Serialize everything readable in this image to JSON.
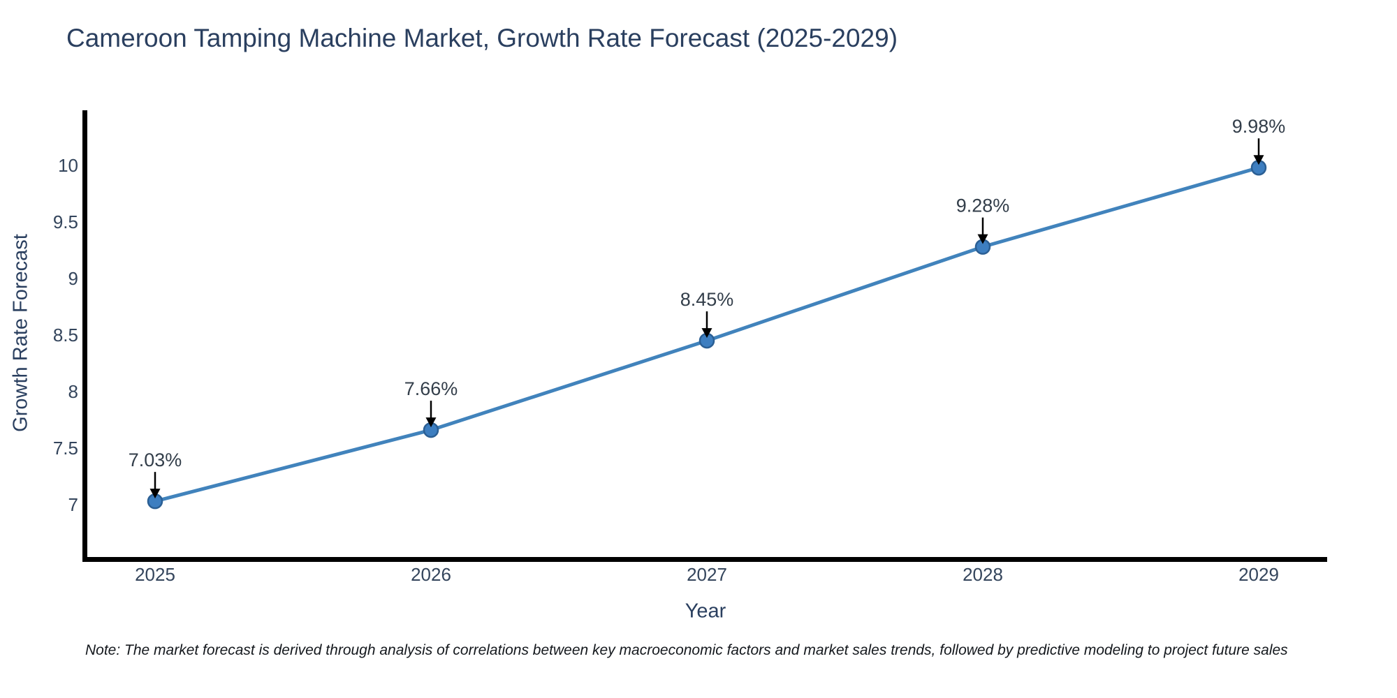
{
  "page": {
    "title": "Cameroon Tamping Machine Market, Growth Rate Forecast (2025-2029)",
    "note": "Note: The market forecast is derived through analysis of correlations between key macroeconomic factors and market sales trends, followed by predictive modeling to project future sales"
  },
  "chart_data": {
    "type": "line",
    "title": "Cameroon Tamping Machine Market, Growth Rate Forecast (2025-2029)",
    "xlabel": "Year",
    "ylabel": "Growth Rate Forecast",
    "x": [
      2025,
      2026,
      2027,
      2028,
      2029
    ],
    "series": [
      {
        "name": "Growth Rate Forecast",
        "values": [
          7.03,
          7.66,
          8.45,
          9.28,
          9.98
        ]
      }
    ],
    "point_labels": [
      "7.03%",
      "7.66%",
      "8.45%",
      "9.28%",
      "9.98%"
    ],
    "x_ticks": [
      "2025",
      "2026",
      "2027",
      "2028",
      "2029"
    ],
    "y_ticks": [
      7,
      7.5,
      8,
      8.5,
      9,
      9.5,
      10
    ],
    "ylim": [
      6.49,
      10.49
    ],
    "grid": false,
    "legend_position": "none",
    "colors": {
      "line": "#4183bc",
      "marker_fill": "#3d7ec0",
      "marker_edge": "#2b5f94",
      "axis": "#000000",
      "arrow": "#000000",
      "title_text": "#2a3f5f",
      "tick_text": "#34455c",
      "annotation_text": "#333e4a",
      "note_text": "#14181d",
      "background": "#ffffff"
    }
  }
}
